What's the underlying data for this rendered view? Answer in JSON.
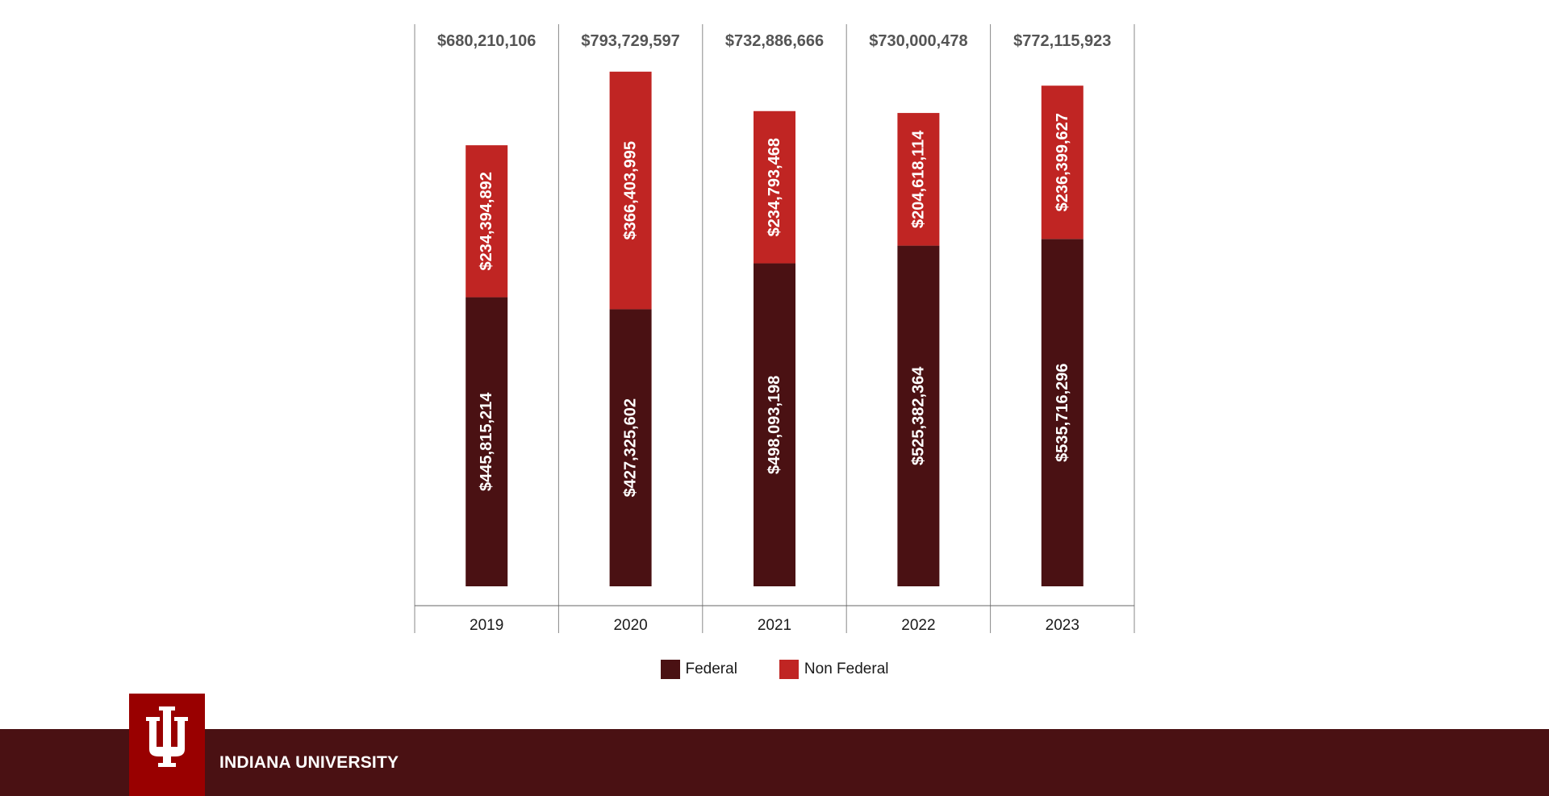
{
  "chart_data": {
    "type": "bar",
    "stacked": true,
    "categories": [
      "2019",
      "2020",
      "2021",
      "2022",
      "2023"
    ],
    "series": [
      {
        "name": "Federal",
        "color": "#4a1113",
        "values": [
          445815214,
          427325602,
          498093198,
          525382364,
          535716296
        ],
        "labels": [
          "$445,815,214",
          "$427,325,602",
          "$498,093,198",
          "$525,382,364",
          "$535,716,296"
        ]
      },
      {
        "name": "Non Federal",
        "color": "#c02523",
        "values": [
          234394892,
          366403995,
          234793468,
          204618114,
          236399627
        ],
        "labels": [
          "$234,394,892",
          "$366,403,995",
          "$234,793,468",
          "$204,618,114",
          "$236,399,627"
        ]
      }
    ],
    "totals": [
      680210106,
      793729597,
      732886666,
      730000478,
      772115923
    ],
    "total_labels": [
      "$680,210,106",
      "$793,729,597",
      "$732,886,666",
      "$730,000,478",
      "$772,115,923"
    ],
    "legend_position": "bottom-center",
    "grid": false
  },
  "legend": {
    "items": [
      {
        "label": "Federal",
        "color": "#4a1113"
      },
      {
        "label": "Non Federal",
        "color": "#c02523"
      }
    ]
  },
  "footer": {
    "title": "INDIANA UNIVERSITY",
    "band_color": "#4a1113",
    "logo_color": "#990000",
    "logo_icon": "iu-trident-logo"
  }
}
